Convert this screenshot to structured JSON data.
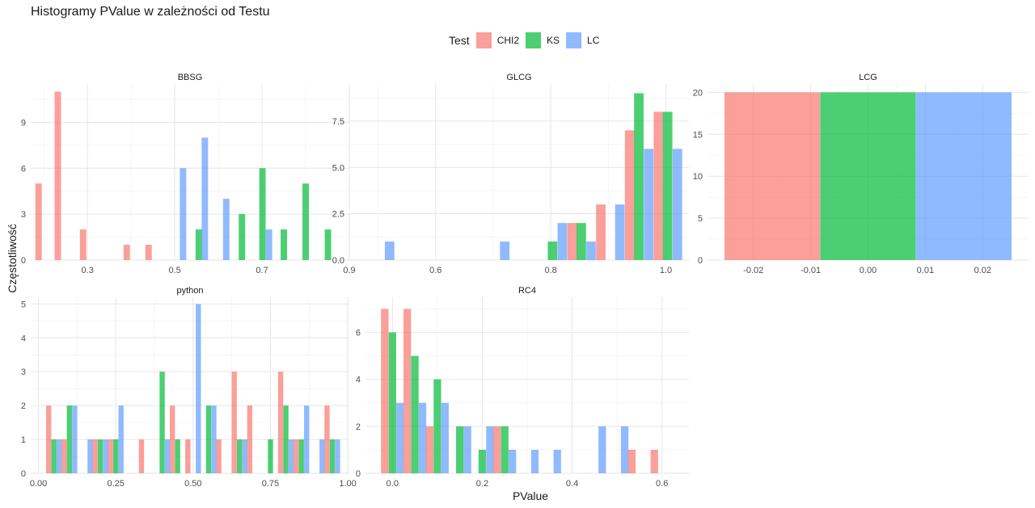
{
  "chart": {
    "title": "Histogramy PValue w zależności od Testu",
    "xlabel": "PValue",
    "ylabel": "Częstotliwość",
    "legend_title": "Test"
  },
  "colors": {
    "CHI2": "#F8766D",
    "KS": "#00BA38",
    "LC": "#619CFF"
  },
  "chart_data": {
    "type": "bar",
    "layout": "facets-3-columns",
    "legend_position": "top",
    "grid": true,
    "series_names": [
      "CHI2",
      "KS",
      "LC"
    ],
    "panels": [
      {
        "name": "BBSG",
        "xlim": [
          0.17,
          0.9
        ],
        "ylim": [
          0,
          11.5
        ],
        "xticks": [
          0.3,
          0.5,
          0.7,
          0.9
        ],
        "xtick_labels": [
          "0.3",
          "0.5",
          "0.7",
          "0.9"
        ],
        "yticks": [
          0,
          3,
          6,
          9
        ],
        "ytick_labels": [
          "0",
          "3",
          "6",
          "9"
        ],
        "bar_width": 0.0147,
        "bars": [
          {
            "series": "CHI2",
            "x": 0.188,
            "y": 5
          },
          {
            "series": "CHI2",
            "x": 0.232,
            "y": 11
          },
          {
            "series": "CHI2",
            "x": 0.29,
            "y": 2
          },
          {
            "series": "CHI2",
            "x": 0.39,
            "y": 1
          },
          {
            "series": "CHI2",
            "x": 0.44,
            "y": 1
          },
          {
            "series": "LC",
            "x": 0.519,
            "y": 6
          },
          {
            "series": "KS",
            "x": 0.555,
            "y": 2
          },
          {
            "series": "LC",
            "x": 0.569,
            "y": 8
          },
          {
            "series": "LC",
            "x": 0.618,
            "y": 4
          },
          {
            "series": "KS",
            "x": 0.654,
            "y": 3
          },
          {
            "series": "KS",
            "x": 0.701,
            "y": 6
          },
          {
            "series": "LC",
            "x": 0.716,
            "y": 2
          },
          {
            "series": "KS",
            "x": 0.75,
            "y": 2
          },
          {
            "series": "KS",
            "x": 0.8,
            "y": 5
          },
          {
            "series": "KS",
            "x": 0.851,
            "y": 2
          }
        ]
      },
      {
        "name": "GLCG",
        "xlim": [
          0.45,
          1.04
        ],
        "ylim": [
          0,
          9.5
        ],
        "xticks": [
          0.6,
          0.8,
          1.0
        ],
        "xtick_labels": [
          "0.6",
          "0.8",
          "1.0"
        ],
        "yticks": [
          0,
          2.5,
          5,
          7.5
        ],
        "ytick_labels": [
          "0.0",
          "2.5",
          "5.0",
          "7.5"
        ],
        "bar_width": 0.0165,
        "bars": [
          {
            "series": "LC",
            "x": 0.52,
            "y": 1
          },
          {
            "series": "LC",
            "x": 0.72,
            "y": 1
          },
          {
            "series": "KS",
            "x": 0.803,
            "y": 1
          },
          {
            "series": "LC",
            "x": 0.82,
            "y": 2
          },
          {
            "series": "CHI2",
            "x": 0.837,
            "y": 2
          },
          {
            "series": "KS",
            "x": 0.853,
            "y": 2
          },
          {
            "series": "LC",
            "x": 0.87,
            "y": 1
          },
          {
            "series": "CHI2",
            "x": 0.887,
            "y": 3
          },
          {
            "series": "LC",
            "x": 0.92,
            "y": 3
          },
          {
            "series": "CHI2",
            "x": 0.937,
            "y": 7
          },
          {
            "series": "KS",
            "x": 0.953,
            "y": 9
          },
          {
            "series": "LC",
            "x": 0.97,
            "y": 6
          },
          {
            "series": "CHI2",
            "x": 0.987,
            "y": 8
          },
          {
            "series": "KS",
            "x": 1.003,
            "y": 8
          },
          {
            "series": "LC",
            "x": 1.02,
            "y": 6
          }
        ]
      },
      {
        "name": "LCG",
        "xlim": [
          -0.028,
          0.028
        ],
        "ylim": [
          0,
          21
        ],
        "xticks": [
          -0.02,
          -0.01,
          0.0,
          0.01,
          0.02
        ],
        "xtick_labels": [
          "-0.02",
          "-0.01",
          "0.00",
          "0.01",
          "0.02"
        ],
        "yticks": [
          0,
          5,
          10,
          15,
          20
        ],
        "ytick_labels": [
          "0",
          "5",
          "10",
          "15",
          "20"
        ],
        "bar_width": 0.01667,
        "bars": [
          {
            "series": "CHI2",
            "x": -0.0167,
            "y": 20
          },
          {
            "series": "KS",
            "x": 0.0,
            "y": 20
          },
          {
            "series": "LC",
            "x": 0.0167,
            "y": 20
          }
        ]
      },
      {
        "name": "python",
        "xlim": [
          -0.025,
          1.005
        ],
        "ylim": [
          0,
          5.2
        ],
        "xticks": [
          0.0,
          0.25,
          0.5,
          0.75,
          1.0
        ],
        "xtick_labels": [
          "0.00",
          "0.25",
          "0.50",
          "0.75",
          "1.00"
        ],
        "yticks": [
          0,
          1,
          2,
          3,
          4,
          5
        ],
        "ytick_labels": [
          "0",
          "1",
          "2",
          "3",
          "4",
          "5"
        ],
        "bar_width": 0.0167,
        "bars": [
          {
            "series": "CHI2",
            "x": 0.033,
            "y": 2
          },
          {
            "series": "KS",
            "x": 0.05,
            "y": 1
          },
          {
            "series": "LC",
            "x": 0.067,
            "y": 1
          },
          {
            "series": "CHI2",
            "x": 0.083,
            "y": 1
          },
          {
            "series": "KS",
            "x": 0.1,
            "y": 2
          },
          {
            "series": "LC",
            "x": 0.117,
            "y": 2
          },
          {
            "series": "LC",
            "x": 0.167,
            "y": 1
          },
          {
            "series": "CHI2",
            "x": 0.183,
            "y": 1
          },
          {
            "series": "KS",
            "x": 0.2,
            "y": 1
          },
          {
            "series": "LC",
            "x": 0.217,
            "y": 1
          },
          {
            "series": "CHI2",
            "x": 0.233,
            "y": 1
          },
          {
            "series": "KS",
            "x": 0.25,
            "y": 1
          },
          {
            "series": "LC",
            "x": 0.267,
            "y": 2
          },
          {
            "series": "CHI2",
            "x": 0.333,
            "y": 1
          },
          {
            "series": "KS",
            "x": 0.4,
            "y": 3
          },
          {
            "series": "LC",
            "x": 0.417,
            "y": 1
          },
          {
            "series": "CHI2",
            "x": 0.433,
            "y": 2
          },
          {
            "series": "KS",
            "x": 0.45,
            "y": 1
          },
          {
            "series": "CHI2",
            "x": 0.483,
            "y": 1
          },
          {
            "series": "LC",
            "x": 0.517,
            "y": 5
          },
          {
            "series": "KS",
            "x": 0.55,
            "y": 2
          },
          {
            "series": "LC",
            "x": 0.567,
            "y": 2
          },
          {
            "series": "CHI2",
            "x": 0.583,
            "y": 1
          },
          {
            "series": "CHI2",
            "x": 0.633,
            "y": 3
          },
          {
            "series": "KS",
            "x": 0.65,
            "y": 1
          },
          {
            "series": "LC",
            "x": 0.667,
            "y": 1
          },
          {
            "series": "CHI2",
            "x": 0.683,
            "y": 2
          },
          {
            "series": "KS",
            "x": 0.75,
            "y": 1
          },
          {
            "series": "CHI2",
            "x": 0.783,
            "y": 3
          },
          {
            "series": "KS",
            "x": 0.8,
            "y": 2
          },
          {
            "series": "LC",
            "x": 0.817,
            "y": 1
          },
          {
            "series": "CHI2",
            "x": 0.833,
            "y": 1
          },
          {
            "series": "KS",
            "x": 0.85,
            "y": 1
          },
          {
            "series": "LC",
            "x": 0.867,
            "y": 2
          },
          {
            "series": "LC",
            "x": 0.917,
            "y": 1
          },
          {
            "series": "CHI2",
            "x": 0.933,
            "y": 2
          },
          {
            "series": "KS",
            "x": 0.95,
            "y": 1
          },
          {
            "series": "LC",
            "x": 0.967,
            "y": 1
          }
        ]
      },
      {
        "name": "RC4",
        "xlim": [
          -0.06,
          0.66
        ],
        "ylim": [
          0,
          7.5
        ],
        "xticks": [
          0.0,
          0.2,
          0.4,
          0.6
        ],
        "xtick_labels": [
          "0.0",
          "0.2",
          "0.4",
          "0.6"
        ],
        "yticks": [
          0,
          2,
          4,
          6
        ],
        "ytick_labels": [
          "0",
          "2",
          "4",
          "6"
        ],
        "bar_width": 0.0167,
        "bars": [
          {
            "series": "CHI2",
            "x": -0.017,
            "y": 7
          },
          {
            "series": "KS",
            "x": 0.0,
            "y": 6
          },
          {
            "series": "LC",
            "x": 0.017,
            "y": 3
          },
          {
            "series": "CHI2",
            "x": 0.033,
            "y": 7
          },
          {
            "series": "KS",
            "x": 0.05,
            "y": 5
          },
          {
            "series": "LC",
            "x": 0.067,
            "y": 3
          },
          {
            "series": "CHI2",
            "x": 0.083,
            "y": 2
          },
          {
            "series": "KS",
            "x": 0.1,
            "y": 4
          },
          {
            "series": "LC",
            "x": 0.117,
            "y": 3
          },
          {
            "series": "KS",
            "x": 0.15,
            "y": 2
          },
          {
            "series": "LC",
            "x": 0.167,
            "y": 2
          },
          {
            "series": "KS",
            "x": 0.2,
            "y": 1
          },
          {
            "series": "LC",
            "x": 0.217,
            "y": 2
          },
          {
            "series": "CHI2",
            "x": 0.233,
            "y": 2
          },
          {
            "series": "KS",
            "x": 0.25,
            "y": 2
          },
          {
            "series": "LC",
            "x": 0.267,
            "y": 1
          },
          {
            "series": "LC",
            "x": 0.317,
            "y": 1
          },
          {
            "series": "LC",
            "x": 0.367,
            "y": 1
          },
          {
            "series": "LC",
            "x": 0.467,
            "y": 2
          },
          {
            "series": "LC",
            "x": 0.517,
            "y": 2
          },
          {
            "series": "CHI2",
            "x": 0.533,
            "y": 1
          },
          {
            "series": "CHI2",
            "x": 0.583,
            "y": 1
          }
        ]
      }
    ]
  }
}
